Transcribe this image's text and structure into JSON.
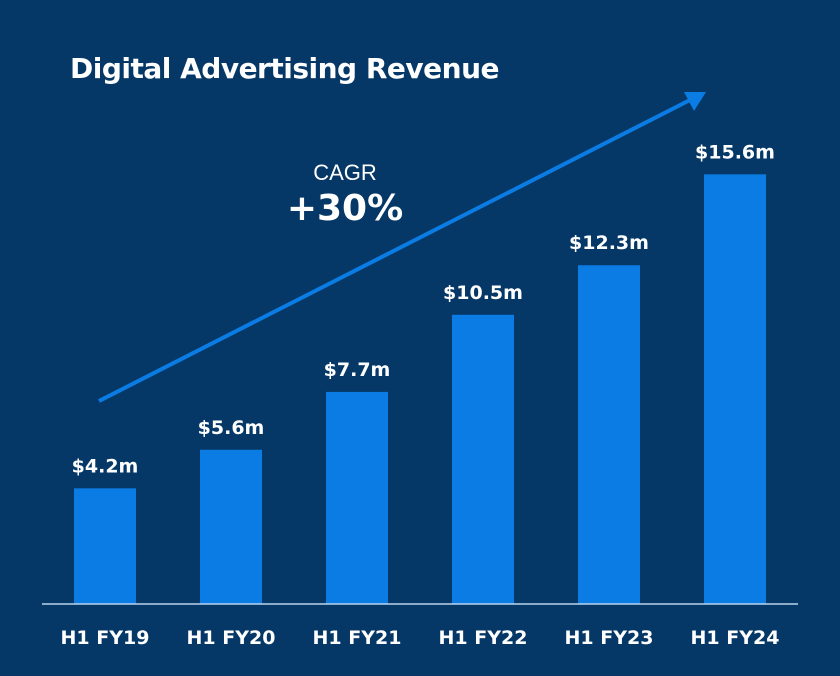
{
  "chart_data": {
    "type": "bar",
    "title": "Digital Advertising Revenue",
    "categories": [
      "H1 FY19",
      "H1 FY20",
      "H1 FY21",
      "H1 FY22",
      "H1 FY23",
      "H1 FY24"
    ],
    "values": [
      4.2,
      5.6,
      7.7,
      10.5,
      12.3,
      15.6
    ],
    "value_labels": [
      "$4.2m",
      "$5.6m",
      "$7.7m",
      "$10.5m",
      "$12.3m",
      "$15.6m"
    ],
    "ylim": [
      0,
      17.5
    ],
    "grid": false,
    "xlabel": "",
    "ylabel": "",
    "annotation": {
      "label": "CAGR",
      "value": "+30%"
    },
    "colors": {
      "background": "#053867",
      "bar": "#0a7ce3",
      "trend_arrow": "#0a7ce3",
      "axis": "#b9d4ee",
      "text": "#ffffff"
    }
  }
}
